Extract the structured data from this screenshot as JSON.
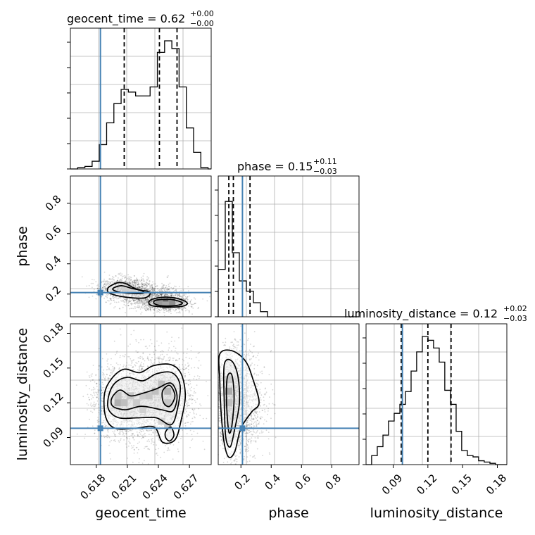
{
  "chart_data": {
    "type": "corner",
    "parameters": [
      {
        "name": "geocent_time",
        "axis_label": "geocent_time",
        "title": "geocent_time = 0.62",
        "median": "0.62",
        "err_plus": "+0.00",
        "err_minus": "−0.00",
        "range": [
          0.6155,
          0.6291
        ],
        "ticks": [
          0.618,
          0.621,
          0.624,
          0.627
        ],
        "tick_labels": [
          "0.618",
          "0.621",
          "0.624",
          "0.627"
        ],
        "truth": 0.6184,
        "quantiles": [
          0.6207,
          0.6241,
          0.6258
        ],
        "hist_edges": [
          0.6155,
          0.6162,
          0.6169,
          0.6176,
          0.6183,
          0.619,
          0.6197,
          0.6204,
          0.6211,
          0.6218,
          0.6225,
          0.6232,
          0.6239,
          0.6246,
          0.6253,
          0.626,
          0.6267,
          0.6274,
          0.6281,
          0.6288,
          0.6291
        ],
        "hist_counts": [
          0.0,
          0.01,
          0.02,
          0.06,
          0.19,
          0.36,
          0.51,
          0.62,
          0.6,
          0.57,
          0.57,
          0.64,
          0.91,
          1.0,
          0.94,
          0.64,
          0.32,
          0.13,
          0.01,
          0.0
        ]
      },
      {
        "name": "phase",
        "axis_label": "phase",
        "title": "phase = 0.15",
        "median": "0.15",
        "err_plus": "+0.11",
        "err_minus": "−0.03",
        "range": [
          0.05,
          0.98
        ],
        "ticks": [
          0.2,
          0.4,
          0.6,
          0.8
        ],
        "tick_labels": [
          "0.2",
          "0.4",
          "0.6",
          "0.8"
        ],
        "truth": 0.21,
        "quantiles": [
          0.12,
          0.15,
          0.26
        ],
        "hist_edges": [
          0.05,
          0.0965,
          0.143,
          0.1895,
          0.236,
          0.2825,
          0.329,
          0.3755,
          0.422,
          0.4685,
          0.515,
          0.98
        ],
        "hist_counts": [
          0.37,
          0.9,
          0.5,
          0.28,
          0.2,
          0.11,
          0.04,
          0.0,
          0.0,
          0.0,
          0.0
        ]
      },
      {
        "name": "luminosity_distance",
        "axis_label": "luminosity_distance",
        "title": "luminosity_distance = 0.12",
        "median": "0.12",
        "err_plus": "+0.02",
        "err_minus": "−0.03",
        "range": [
          0.0666,
          0.1882
        ],
        "ticks": [
          0.09,
          0.12,
          0.15,
          0.18
        ],
        "tick_labels": [
          "0.09",
          "0.12",
          "0.15",
          "0.18"
        ],
        "truth": 0.098,
        "quantiles": [
          0.097,
          0.12,
          0.14
        ],
        "hist_edges": [
          0.0666,
          0.0714,
          0.0763,
          0.0812,
          0.086,
          0.0909,
          0.0958,
          0.1006,
          0.1055,
          0.1103,
          0.1152,
          0.1201,
          0.1249,
          0.1298,
          0.1346,
          0.1395,
          0.1444,
          0.1492,
          0.1541,
          0.159,
          0.1638,
          0.1687,
          0.1736,
          0.1784,
          0.1833,
          0.1882
        ],
        "hist_counts": [
          0.0,
          0.07,
          0.14,
          0.23,
          0.34,
          0.4,
          0.47,
          0.57,
          0.73,
          0.88,
          1.0,
          0.97,
          0.91,
          0.8,
          0.58,
          0.47,
          0.26,
          0.11,
          0.07,
          0.06,
          0.03,
          0.02,
          0.01,
          0.0,
          0.0
        ]
      }
    ],
    "truth_color": "#4682b4",
    "hist_color": "#000000",
    "quantile_line": "dashed",
    "grid": true,
    "lower_panels": [
      {
        "x": "geocent_time",
        "y": "phase",
        "contours": [
          [
            [
              0.6194,
              0.255
            ],
            [
              0.6201,
              0.275
            ],
            [
              0.6208,
              0.27
            ],
            [
              0.6215,
              0.245
            ],
            [
              0.6222,
              0.225
            ],
            [
              0.623,
              0.218
            ],
            [
              0.6232,
              0.2
            ],
            [
              0.6227,
              0.175
            ],
            [
              0.6215,
              0.175
            ],
            [
              0.62,
              0.19
            ],
            [
              0.6192,
              0.21
            ],
            [
              0.6191,
              0.235
            ]
          ],
          [
            [
              0.6198,
              0.245
            ],
            [
              0.6205,
              0.255
            ],
            [
              0.6214,
              0.238
            ],
            [
              0.6224,
              0.222
            ],
            [
              0.6225,
              0.205
            ],
            [
              0.6212,
              0.205
            ],
            [
              0.6201,
              0.215
            ],
            [
              0.6196,
              0.23
            ]
          ],
          [
            [
              0.6236,
              0.17
            ],
            [
              0.6248,
              0.18
            ],
            [
              0.626,
              0.168
            ],
            [
              0.6268,
              0.14
            ],
            [
              0.6262,
              0.118
            ],
            [
              0.6245,
              0.115
            ],
            [
              0.6233,
              0.125
            ],
            [
              0.6231,
              0.15
            ]
          ],
          [
            [
              0.6238,
              0.16
            ],
            [
              0.6252,
              0.165
            ],
            [
              0.6263,
              0.143
            ],
            [
              0.6258,
              0.125
            ],
            [
              0.6244,
              0.122
            ],
            [
              0.6236,
              0.138
            ]
          ]
        ],
        "density_cells": [
          {
            "x": 0.6247,
            "y": 0.145,
            "weight": 1.0
          },
          {
            "x": 0.6253,
            "y": 0.145,
            "weight": 0.55
          },
          {
            "x": 0.6241,
            "y": 0.145,
            "weight": 0.45
          },
          {
            "x": 0.6247,
            "y": 0.128,
            "weight": 0.35
          },
          {
            "x": 0.6208,
            "y": 0.24,
            "weight": 0.25
          },
          {
            "x": 0.6215,
            "y": 0.225,
            "weight": 0.2
          }
        ]
      },
      {
        "x": "geocent_time",
        "y": "luminosity_distance",
        "contours": [
          [
            [
              0.6188,
              0.128
            ],
            [
              0.6195,
              0.141
            ],
            [
              0.6207,
              0.149
            ],
            [
              0.6222,
              0.146
            ],
            [
              0.6235,
              0.152
            ],
            [
              0.6252,
              0.153
            ],
            [
              0.6262,
              0.145
            ],
            [
              0.6266,
              0.126
            ],
            [
              0.6262,
              0.105
            ],
            [
              0.6256,
              0.088
            ],
            [
              0.6244,
              0.086
            ],
            [
              0.6236,
              0.099
            ],
            [
              0.6218,
              0.098
            ],
            [
              0.6198,
              0.098
            ],
            [
              0.6189,
              0.108
            ]
          ],
          [
            [
              0.6192,
              0.126
            ],
            [
              0.6198,
              0.137
            ],
            [
              0.621,
              0.142
            ],
            [
              0.6225,
              0.139
            ],
            [
              0.6238,
              0.145
            ],
            [
              0.6253,
              0.146
            ],
            [
              0.6261,
              0.135
            ],
            [
              0.6258,
              0.113
            ],
            [
              0.6252,
              0.101
            ],
            [
              0.6238,
              0.107
            ],
            [
              0.622,
              0.107
            ],
            [
              0.6202,
              0.107
            ],
            [
              0.6192,
              0.114
            ]
          ],
          [
            [
              0.6195,
              0.124
            ],
            [
              0.6203,
              0.131
            ],
            [
              0.6213,
              0.126
            ],
            [
              0.6224,
              0.128
            ],
            [
              0.6238,
              0.132
            ],
            [
              0.6252,
              0.137
            ],
            [
              0.6258,
              0.126
            ],
            [
              0.6254,
              0.113
            ],
            [
              0.6243,
              0.114
            ],
            [
              0.6224,
              0.117
            ],
            [
              0.6208,
              0.114
            ],
            [
              0.6196,
              0.117
            ]
          ],
          [
            [
              0.6244,
              0.13
            ],
            [
              0.6251,
              0.135
            ],
            [
              0.6256,
              0.126
            ],
            [
              0.6251,
              0.117
            ],
            [
              0.6245,
              0.12
            ]
          ],
          [
            [
              0.6247,
              0.095
            ],
            [
              0.6252,
              0.099
            ],
            [
              0.6255,
              0.092
            ],
            [
              0.6251,
              0.087
            ],
            [
              0.6247,
              0.09
            ]
          ]
        ],
        "density_cells": [
          {
            "x": 0.6201,
            "y": 0.12,
            "weight": 0.9
          },
          {
            "x": 0.6207,
            "y": 0.12,
            "weight": 0.6
          },
          {
            "x": 0.6201,
            "y": 0.126,
            "weight": 0.45
          },
          {
            "x": 0.6213,
            "y": 0.126,
            "weight": 0.4
          },
          {
            "x": 0.6219,
            "y": 0.12,
            "weight": 0.35
          },
          {
            "x": 0.6225,
            "y": 0.126,
            "weight": 0.3
          },
          {
            "x": 0.6231,
            "y": 0.126,
            "weight": 0.45
          },
          {
            "x": 0.6237,
            "y": 0.13,
            "weight": 0.6
          },
          {
            "x": 0.6249,
            "y": 0.13,
            "weight": 1.0
          },
          {
            "x": 0.6249,
            "y": 0.12,
            "weight": 0.55
          },
          {
            "x": 0.6243,
            "y": 0.136,
            "weight": 0.5
          },
          {
            "x": 0.6225,
            "y": 0.114,
            "weight": 0.25
          },
          {
            "x": 0.6249,
            "y": 0.1,
            "weight": 0.3
          },
          {
            "x": 0.6243,
            "y": 0.104,
            "weight": 0.2
          }
        ]
      },
      {
        "x": "phase",
        "y": "luminosity_distance",
        "contours": [
          [
            [
              0.06,
              0.162
            ],
            [
              0.14,
              0.165
            ],
            [
              0.23,
              0.156
            ],
            [
              0.28,
              0.14
            ],
            [
              0.32,
              0.12
            ],
            [
              0.27,
              0.112
            ],
            [
              0.2,
              0.098
            ],
            [
              0.16,
              0.078
            ],
            [
              0.12,
              0.073
            ],
            [
              0.09,
              0.085
            ],
            [
              0.07,
              0.11
            ],
            [
              0.06,
              0.14
            ]
          ],
          [
            [
              0.09,
              0.153
            ],
            [
              0.14,
              0.156
            ],
            [
              0.18,
              0.143
            ],
            [
              0.19,
              0.12
            ],
            [
              0.16,
              0.098
            ],
            [
              0.13,
              0.082
            ],
            [
              0.1,
              0.09
            ],
            [
              0.09,
              0.12
            ]
          ],
          [
            [
              0.11,
              0.142
            ],
            [
              0.14,
              0.144
            ],
            [
              0.155,
              0.125
            ],
            [
              0.14,
              0.1
            ],
            [
              0.12,
              0.095
            ],
            [
              0.105,
              0.12
            ]
          ]
        ],
        "density_cells": [
          {
            "x": 0.12,
            "y": 0.13,
            "weight": 1.0
          },
          {
            "x": 0.12,
            "y": 0.12,
            "weight": 0.6
          },
          {
            "x": 0.12,
            "y": 0.14,
            "weight": 0.4
          }
        ]
      }
    ]
  }
}
